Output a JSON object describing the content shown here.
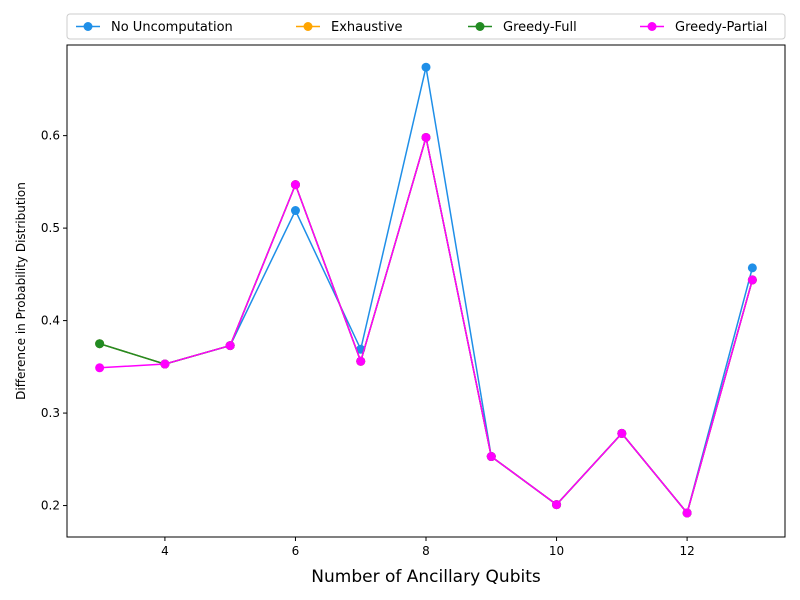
{
  "chart_data": {
    "type": "line",
    "xlabel": "Number of Ancillary Qubits",
    "ylabel": "Difference in Probability Distribution",
    "xlim": [
      2.5,
      13.5
    ],
    "ylim": [
      0.166,
      0.698
    ],
    "xticks": [
      4,
      6,
      8,
      10,
      12
    ],
    "yticks": [
      0.2,
      0.3,
      0.4,
      0.5,
      0.6
    ],
    "grid": false,
    "legend_position": "top, outside plot, single row",
    "x": [
      3,
      4,
      5,
      6,
      7,
      8,
      9,
      10,
      11,
      12,
      13
    ],
    "series": [
      {
        "name": "No Uncomputation",
        "color": "#1f8fe8",
        "values": [
          0.375,
          0.353,
          0.373,
          0.519,
          0.369,
          0.674,
          0.253,
          0.201,
          0.278,
          0.192,
          0.457
        ]
      },
      {
        "name": "Exhaustive",
        "color": "#ffa500",
        "values": [
          0.375,
          0.353,
          0.373,
          0.547,
          0.356,
          0.598,
          0.253,
          0.201,
          0.278,
          0.192,
          0.444
        ]
      },
      {
        "name": "Greedy-Full",
        "color": "#228b22",
        "values": [
          0.375,
          0.353,
          0.373,
          0.547,
          0.356,
          0.598,
          0.253,
          0.201,
          0.278,
          0.192,
          0.444
        ]
      },
      {
        "name": "Greedy-Partial",
        "color": "#ff00ff",
        "values": [
          0.349,
          0.353,
          0.373,
          0.547,
          0.356,
          0.598,
          0.253,
          0.201,
          0.278,
          0.192,
          0.444
        ]
      }
    ]
  }
}
